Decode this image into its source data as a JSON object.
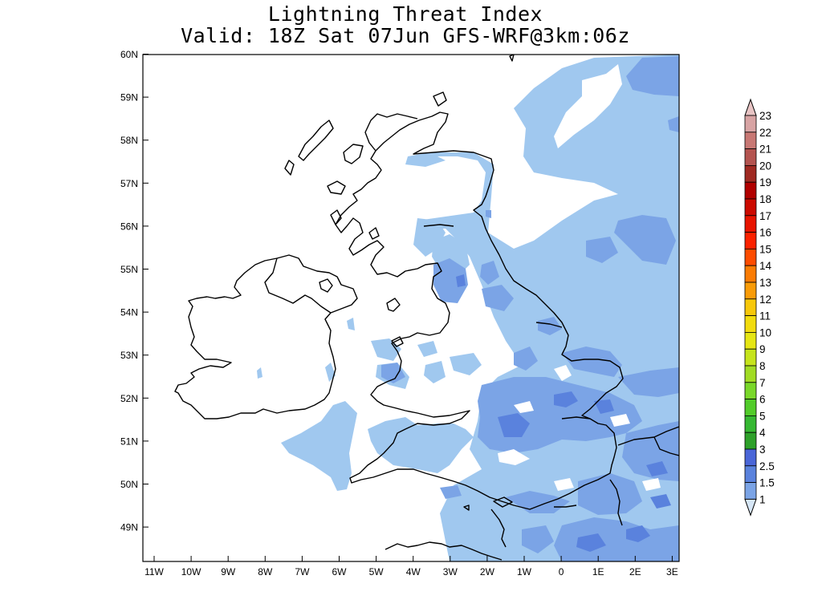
{
  "title": {
    "line1": "Lightning Threat Index",
    "line2": "Valid: 18Z Sat 07Jun GFS-WRF@3km:06z"
  },
  "map": {
    "lat_ticks": [
      "60N",
      "59N",
      "58N",
      "57N",
      "56N",
      "55N",
      "54N",
      "53N",
      "52N",
      "51N",
      "50N",
      "49N"
    ],
    "lon_ticks": [
      "11W",
      "10W",
      "9W",
      "8W",
      "7W",
      "6W",
      "5W",
      "4W",
      "3W",
      "2W",
      "1W",
      "0",
      "1E",
      "2E",
      "3E"
    ],
    "background": "#ffffff",
    "coastline_color": "#000000"
  },
  "legend": {
    "levels": [
      "1",
      "1.5",
      "2.5",
      "3",
      "4",
      "5",
      "6",
      "7",
      "8",
      "9",
      "10",
      "11",
      "12",
      "13",
      "14",
      "15",
      "16",
      "17",
      "18",
      "19",
      "20",
      "21",
      "22",
      "23"
    ],
    "colors": [
      "#a0c8ef",
      "#7ba4e6",
      "#5a82dd",
      "#4a66d8",
      "#2ea12a",
      "#36b832",
      "#52cc2a",
      "#7ad82a",
      "#a2dc24",
      "#c6e41c",
      "#e6e614",
      "#f2dc0e",
      "#f7c80a",
      "#fa9c08",
      "#fb7c04",
      "#fe4c00",
      "#fc2200",
      "#e81400",
      "#cc0a00",
      "#b10000",
      "#a02a22",
      "#b45450",
      "#c87874",
      "#d8a4a4"
    ],
    "under_color": "#d6e6f6",
    "over_color": "#e8c4c4"
  }
}
